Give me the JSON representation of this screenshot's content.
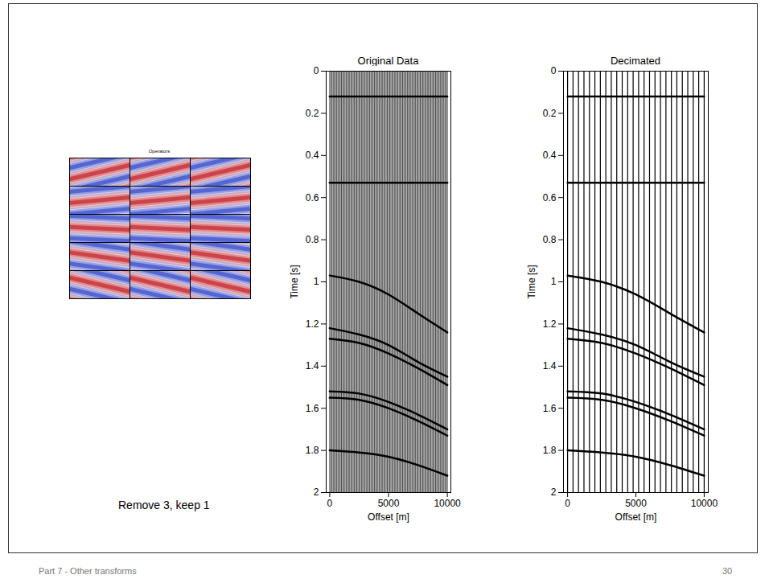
{
  "chart_data": [
    {
      "type": "heatmap",
      "title": "Operators",
      "tick_labels": false,
      "dips": [
        [
          0.5,
          0.5,
          0.5
        ],
        [
          0.2,
          0.2,
          0.2
        ],
        [
          -0.1,
          -0.1,
          -0.1
        ],
        [
          -0.3,
          -0.3,
          -0.3
        ],
        [
          -0.5,
          -0.5,
          -0.5
        ]
      ]
    },
    {
      "type": "wiggle",
      "title": "Original Data",
      "x_label": "Offset [m]",
      "y_label": "Time [s]",
      "xlim": [
        -300,
        10300
      ],
      "ylim": [
        0,
        2
      ],
      "xticks": [
        0,
        5000,
        10000
      ],
      "yticks": [
        0,
        0.2,
        0.4,
        0.6,
        0.8,
        1,
        1.2,
        1.4,
        1.6,
        1.8,
        2
      ],
      "traces": [
        0,
        100,
        200,
        300,
        400,
        500,
        600,
        700,
        800,
        900,
        1000,
        1100,
        1200,
        1300,
        1400,
        1500,
        1600,
        1700,
        1800,
        1900,
        2000,
        2100,
        2200,
        2300,
        2400,
        2500,
        2600,
        2700,
        2800,
        2900,
        3000,
        3100,
        3200,
        3300,
        3400,
        3500,
        3600,
        3700,
        3800,
        3900,
        4000,
        4100,
        4200,
        4300,
        4400,
        4500,
        4600,
        4700,
        4800,
        4900,
        5000,
        5100,
        5200,
        5300,
        5400,
        5500,
        5600,
        5700,
        5800,
        5900,
        6000,
        6100,
        6200,
        6300,
        6400,
        6500,
        6600,
        6700,
        6800,
        6900,
        7000,
        7100,
        7200,
        7300,
        7400,
        7500,
        7600,
        7700,
        7800,
        7900,
        8000,
        8100,
        8200,
        8300,
        8400,
        8500,
        8600,
        8700,
        8800,
        8900,
        9000,
        9100,
        9200,
        9300,
        9400,
        9500,
        9600,
        9700,
        9800,
        9900,
        10000
      ],
      "events": [
        {
          "x": [
            0,
            2500,
            5000,
            7500,
            10000
          ],
          "t": [
            0.12,
            0.12,
            0.12,
            0.12,
            0.12
          ]
        },
        {
          "x": [
            0,
            2500,
            5000,
            7500,
            10000
          ],
          "t": [
            0.53,
            0.53,
            0.53,
            0.53,
            0.53
          ]
        },
        {
          "x": [
            0,
            2500,
            5000,
            7500,
            10000
          ],
          "t": [
            0.97,
            1.0,
            1.06,
            1.15,
            1.24
          ]
        },
        {
          "x": [
            0,
            2500,
            5000,
            7500,
            10000
          ],
          "t": [
            1.22,
            1.25,
            1.3,
            1.38,
            1.45
          ]
        },
        {
          "x": [
            0,
            2500,
            5000,
            7500,
            10000
          ],
          "t": [
            1.27,
            1.29,
            1.34,
            1.41,
            1.49
          ]
        },
        {
          "x": [
            0,
            2500,
            5000,
            7500,
            10000
          ],
          "t": [
            1.52,
            1.53,
            1.57,
            1.63,
            1.7
          ]
        },
        {
          "x": [
            0,
            2500,
            5000,
            7500,
            10000
          ],
          "t": [
            1.55,
            1.56,
            1.6,
            1.66,
            1.73
          ]
        },
        {
          "x": [
            0,
            2500,
            5000,
            7500,
            10000
          ],
          "t": [
            1.8,
            1.81,
            1.83,
            1.87,
            1.92
          ]
        }
      ]
    },
    {
      "type": "wiggle",
      "title": "Decimated",
      "x_label": "Offset [m]",
      "y_label": "Time [s]",
      "xlim": [
        -300,
        10300
      ],
      "ylim": [
        0,
        2
      ],
      "xticks": [
        0,
        5000,
        10000
      ],
      "yticks": [
        0,
        0.2,
        0.4,
        0.6,
        0.8,
        1,
        1.2,
        1.4,
        1.6,
        1.8,
        2
      ],
      "traces": [
        0,
        400,
        800,
        1200,
        1600,
        2000,
        2400,
        2800,
        3200,
        3600,
        4000,
        4400,
        4800,
        5200,
        5600,
        6000,
        6400,
        6800,
        7200,
        7600,
        8000,
        8400,
        8800,
        9200,
        9600,
        10000
      ],
      "events": [
        {
          "x": [
            0,
            2500,
            5000,
            7500,
            10000
          ],
          "t": [
            0.12,
            0.12,
            0.12,
            0.12,
            0.12
          ]
        },
        {
          "x": [
            0,
            2500,
            5000,
            7500,
            10000
          ],
          "t": [
            0.53,
            0.53,
            0.53,
            0.53,
            0.53
          ]
        },
        {
          "x": [
            0,
            2500,
            5000,
            7500,
            10000
          ],
          "t": [
            0.97,
            1.0,
            1.06,
            1.15,
            1.24
          ]
        },
        {
          "x": [
            0,
            2500,
            5000,
            7500,
            10000
          ],
          "t": [
            1.22,
            1.25,
            1.3,
            1.38,
            1.45
          ]
        },
        {
          "x": [
            0,
            2500,
            5000,
            7500,
            10000
          ],
          "t": [
            1.27,
            1.29,
            1.34,
            1.41,
            1.49
          ]
        },
        {
          "x": [
            0,
            2500,
            5000,
            7500,
            10000
          ],
          "t": [
            1.52,
            1.53,
            1.57,
            1.63,
            1.7
          ]
        },
        {
          "x": [
            0,
            2500,
            5000,
            7500,
            10000
          ],
          "t": [
            1.55,
            1.56,
            1.6,
            1.66,
            1.73
          ]
        },
        {
          "x": [
            0,
            2500,
            5000,
            7500,
            10000
          ],
          "t": [
            1.8,
            1.81,
            1.83,
            1.87,
            1.92
          ]
        }
      ]
    }
  ],
  "caption": "Remove 3, keep 1",
  "footer": {
    "text": "Part 7 - Other transforms",
    "page": "30"
  }
}
